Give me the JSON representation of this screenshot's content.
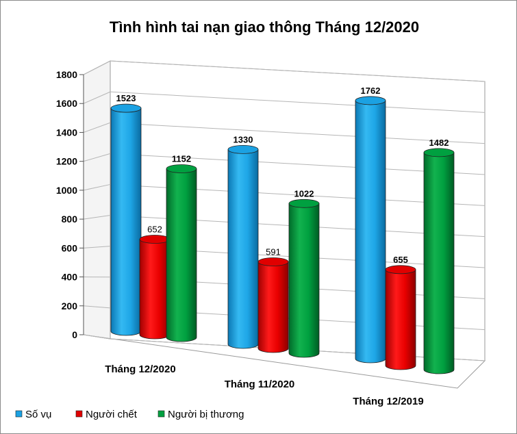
{
  "chart_data": {
    "type": "bar",
    "title": "Tình hình tai nạn giao thông Tháng 12/2020",
    "categories": [
      "Tháng 12/2020",
      "Tháng 11/2020",
      "Tháng 12/2019"
    ],
    "series": [
      {
        "name": "Số vụ",
        "values": [
          1523,
          1330,
          1762
        ],
        "color": "#1ba1e2"
      },
      {
        "name": "Người chết",
        "values": [
          652,
          591,
          655
        ],
        "color": "#e00000"
      },
      {
        "name": "Người bị thương",
        "values": [
          1152,
          1022,
          1482
        ],
        "color": "#00a040"
      }
    ],
    "ylim": [
      0,
      1800
    ],
    "yticks": [
      0,
      200,
      400,
      600,
      800,
      1000,
      1200,
      1400,
      1600,
      1800
    ],
    "grid": true,
    "legend_position": "bottom-left",
    "style": "3d-cylinder"
  }
}
